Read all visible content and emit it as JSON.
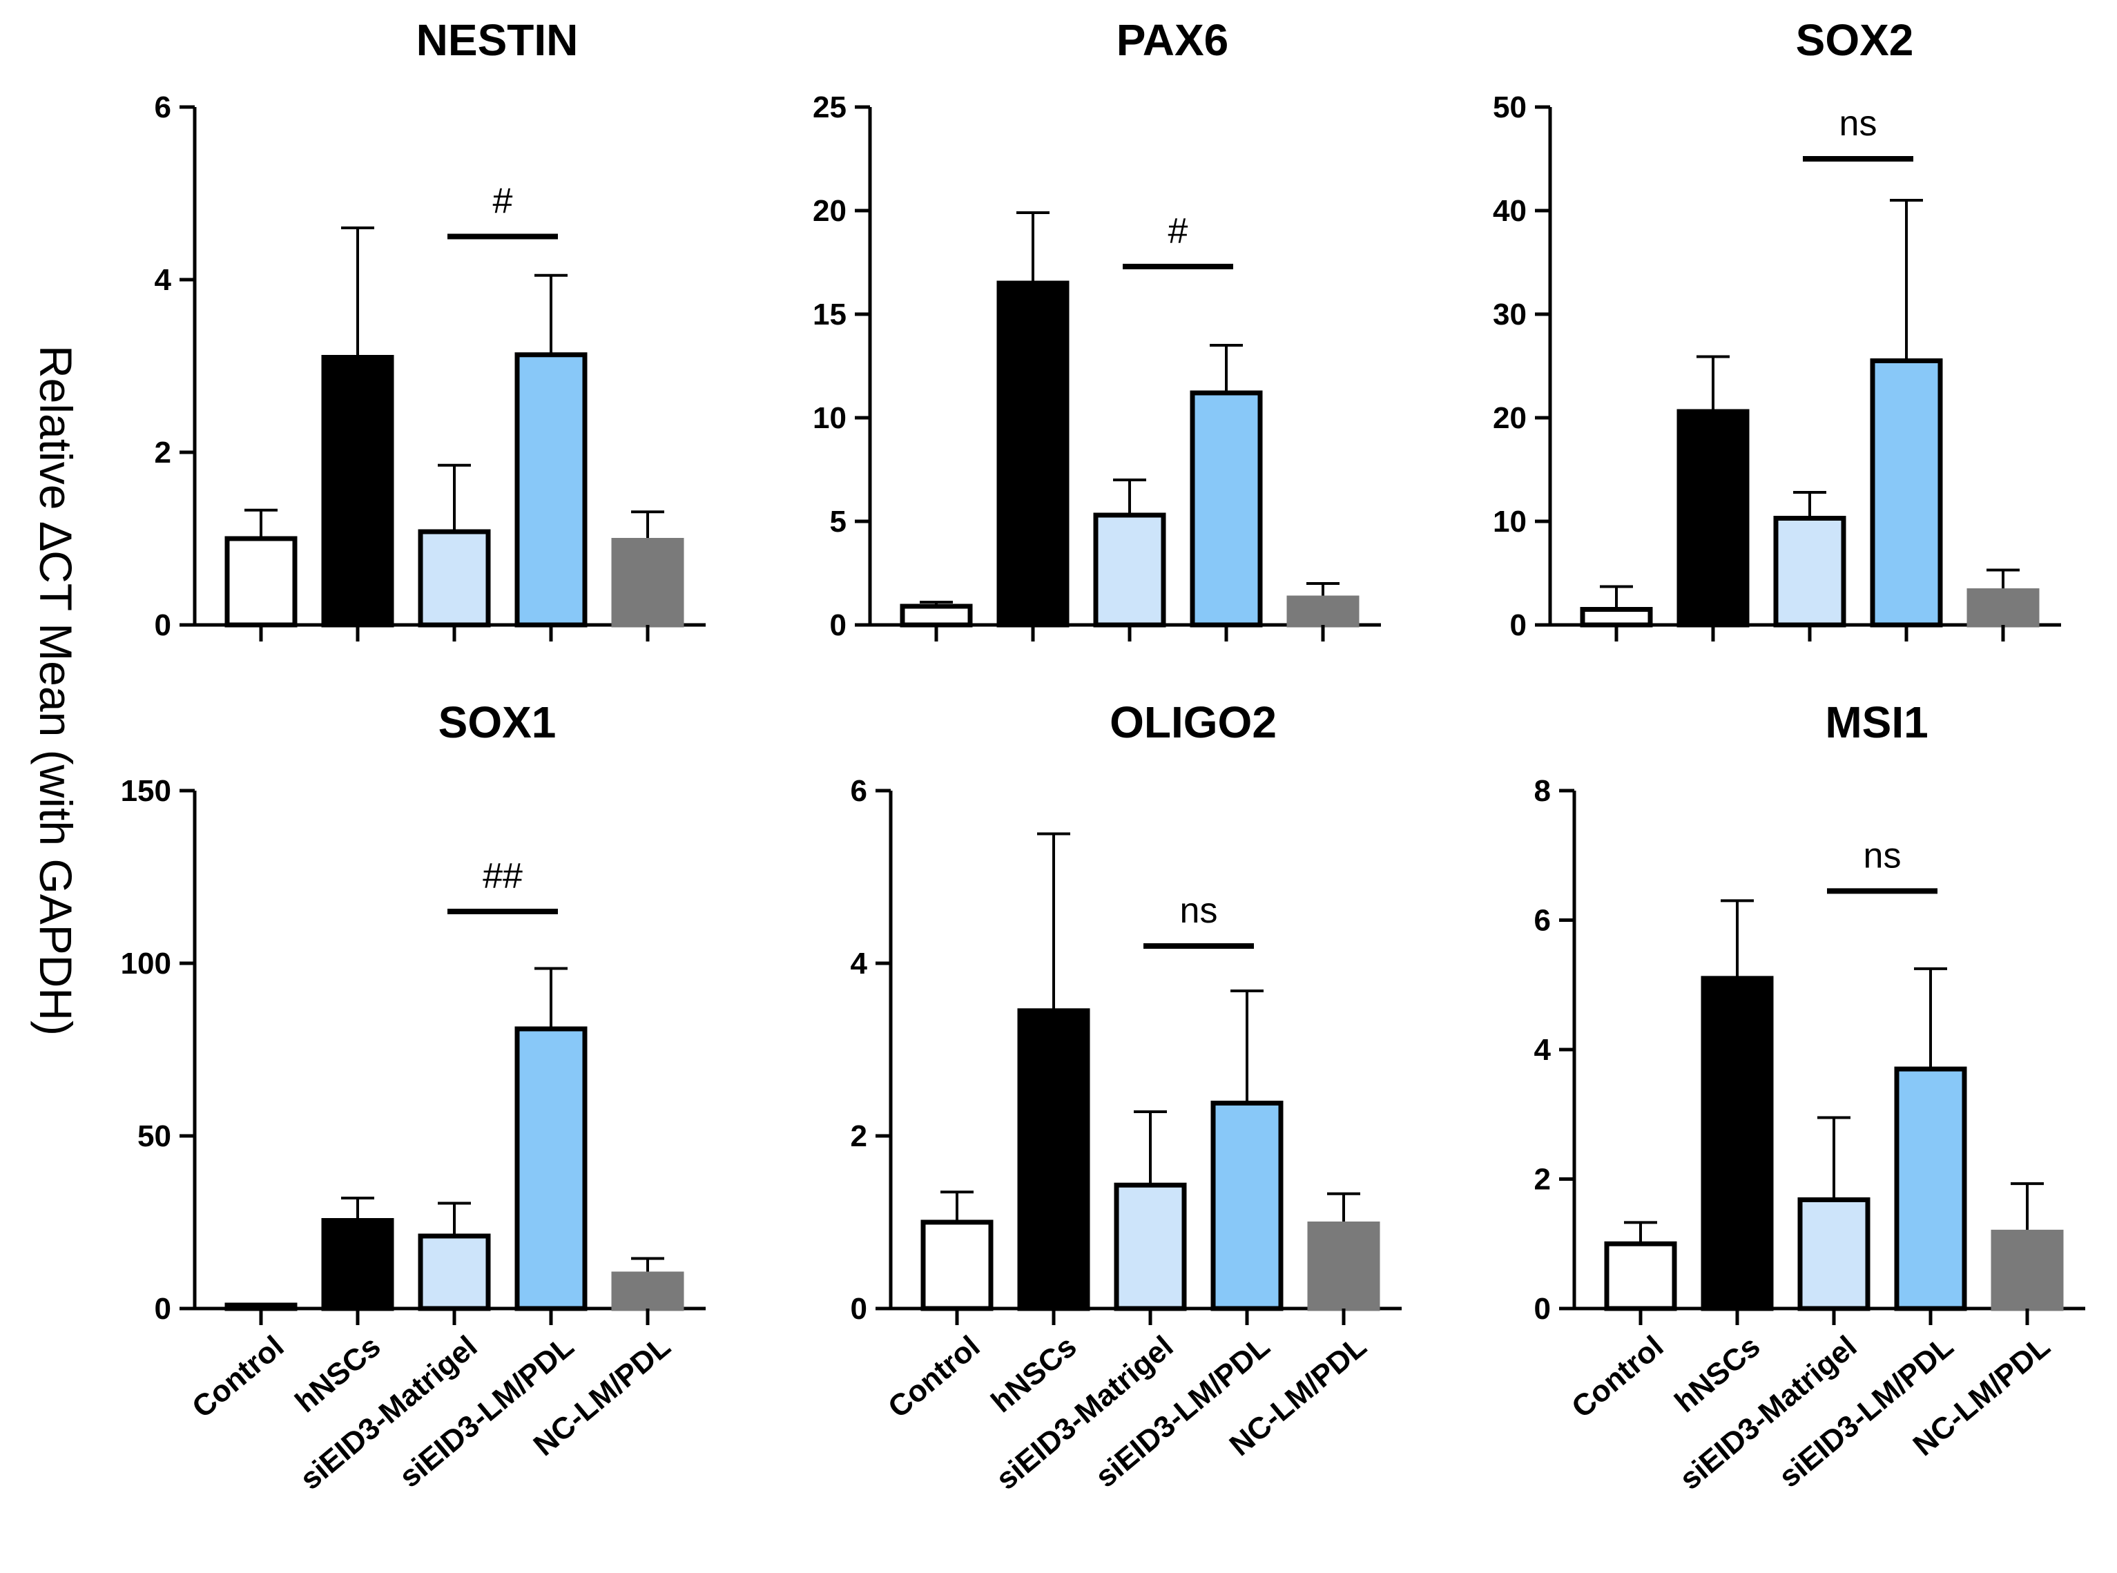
{
  "figure": {
    "ylabel": "Relative ∆CT Mean (with GAPDH)"
  },
  "chart_data": [
    {
      "type": "bar",
      "title": "NESTIN",
      "categories": [
        "Control",
        "hNSCs",
        "siEID3-Matrigel",
        "siEID3-LM/PDL",
        "NC-LM/PDL"
      ],
      "values": [
        1.0,
        3.1,
        1.08,
        3.13,
        0.98
      ],
      "errors": [
        0.33,
        1.5,
        0.77,
        0.92,
        0.33
      ],
      "yticks": [
        "0",
        "2",
        "4",
        "6"
      ],
      "ylim": [
        0,
        6
      ],
      "significance": {
        "label": "#",
        "from": 2,
        "to": 3,
        "y": 4.5
      },
      "xlabel": "",
      "ylabel": ""
    },
    {
      "type": "bar",
      "title": "PAX6",
      "categories": [
        "Control",
        "hNSCs",
        "siEID3-Matrigel",
        "siEID3-LM/PDL",
        "NC-LM/PDL"
      ],
      "values": [
        0.9,
        16.5,
        5.3,
        11.2,
        1.3
      ],
      "errors": [
        0.2,
        3.4,
        1.7,
        2.3,
        0.7
      ],
      "yticks": [
        "0",
        "5",
        "10",
        "15",
        "20",
        "25"
      ],
      "ylim": [
        0,
        25
      ],
      "significance": {
        "label": "#",
        "from": 2,
        "to": 3,
        "y": 17.3
      },
      "xlabel": "",
      "ylabel": ""
    },
    {
      "type": "bar",
      "title": "SOX2",
      "categories": [
        "Control",
        "hNSCs",
        "siEID3-Matrigel",
        "siEID3-LM/PDL",
        "NC-LM/PDL"
      ],
      "values": [
        1.5,
        20.6,
        10.3,
        25.5,
        3.3
      ],
      "errors": [
        2.2,
        5.3,
        2.5,
        15.5,
        2.0
      ],
      "yticks": [
        "0",
        "10",
        "20",
        "30",
        "40",
        "50"
      ],
      "ylim": [
        0,
        50
      ],
      "significance": {
        "label": "ns",
        "from": 2,
        "to": 3,
        "y": 45
      },
      "xlabel": "",
      "ylabel": ""
    },
    {
      "type": "bar",
      "title": "SOX1",
      "categories": [
        "Control",
        "hNSCs",
        "siEID3-Matrigel",
        "siEID3-LM/PDL",
        "NC-LM/PDL"
      ],
      "values": [
        1.0,
        25.5,
        21.0,
        81.0,
        10.0
      ],
      "errors": [
        0.3,
        6.5,
        9.5,
        17.5,
        4.5
      ],
      "yticks": [
        "0",
        "50",
        "100",
        "150"
      ],
      "ylim": [
        0,
        150
      ],
      "significance": {
        "label": "##",
        "from": 2,
        "to": 3,
        "y": 115
      },
      "xlabel": "",
      "ylabel": ""
    },
    {
      "type": "bar",
      "title": "OLIGO2",
      "categories": [
        "Control",
        "hNSCs",
        "siEID3-Matrigel",
        "siEID3-LM/PDL",
        "NC-LM/PDL"
      ],
      "values": [
        1.0,
        3.45,
        1.43,
        2.38,
        0.98
      ],
      "errors": [
        0.35,
        2.05,
        0.85,
        1.3,
        0.35
      ],
      "yticks": [
        "0",
        "2",
        "4",
        "6"
      ],
      "ylim": [
        0,
        6
      ],
      "significance": {
        "label": "ns",
        "from": 2,
        "to": 3,
        "y": 4.2
      },
      "xlabel": "",
      "ylabel": ""
    },
    {
      "type": "bar",
      "title": "MSI1",
      "categories": [
        "Control",
        "hNSCs",
        "siEID3-Matrigel",
        "siEID3-LM/PDL",
        "NC-LM/PDL"
      ],
      "values": [
        1.0,
        5.1,
        1.68,
        3.7,
        1.18
      ],
      "errors": [
        0.33,
        1.2,
        1.27,
        1.55,
        0.75
      ],
      "yticks": [
        "0",
        "2",
        "4",
        "6",
        "8"
      ],
      "ylim": [
        0,
        8
      ],
      "significance": {
        "label": "ns",
        "from": 2,
        "to": 3,
        "y": 6.45
      },
      "xlabel": "",
      "ylabel": ""
    }
  ],
  "bar_styles": [
    {
      "fill": "#ffffff",
      "stroke": "#000000"
    },
    {
      "fill": "#000000",
      "stroke": "#000000"
    },
    {
      "fill": "#cde4fa",
      "stroke": "#000000"
    },
    {
      "fill": "#88c8f8",
      "stroke": "#000000"
    },
    {
      "fill": "#7a7a7a",
      "stroke": "#7a7a7a"
    }
  ]
}
